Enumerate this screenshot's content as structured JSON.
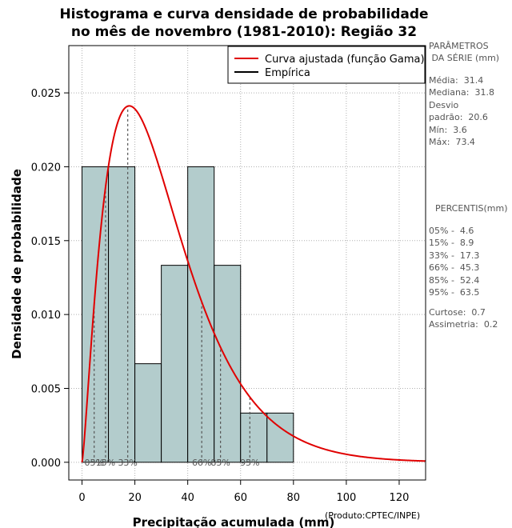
{
  "chart_data": {
    "type": "bar",
    "title": [
      "Histograma e curva densidade de probabilidade",
      "no mês de novembro (1981-2010): Região 32"
    ],
    "xlabel": "Precipitação acumulada (mm)",
    "ylabel": "Densidade de probabilidade",
    "xlim": [
      -5,
      130
    ],
    "ylim": [
      -0.0012,
      0.0282
    ],
    "xticks": [
      0,
      20,
      40,
      60,
      80,
      100,
      120
    ],
    "yticks": [
      0.0,
      0.005,
      0.01,
      0.015,
      0.02,
      0.025
    ],
    "ytick_labels": [
      "0.000",
      "0.005",
      "0.010",
      "0.015",
      "0.020",
      "0.025"
    ],
    "grid": true,
    "bins": [
      {
        "from": 0,
        "to": 10,
        "density": 0.02
      },
      {
        "from": 10,
        "to": 20,
        "density": 0.02
      },
      {
        "from": 20,
        "to": 30,
        "density": 0.00667
      },
      {
        "from": 30,
        "to": 40,
        "density": 0.01333
      },
      {
        "from": 40,
        "to": 50,
        "density": 0.02
      },
      {
        "from": 50,
        "to": 60,
        "density": 0.01333
      },
      {
        "from": 60,
        "to": 70,
        "density": 0.00333
      },
      {
        "from": 70,
        "to": 80,
        "density": 0.00333
      }
    ],
    "fitted_curve": {
      "name": "Curva ajustada (função Gama)",
      "distribution": "gamma",
      "mean": 31.4,
      "sd": 20.6,
      "color": "#e00000"
    },
    "legend": [
      {
        "label": "Curva ajustada (função Gama)",
        "color": "#e00000"
      },
      {
        "label": "Empírica",
        "color": "#000000"
      }
    ],
    "percentile_markers": [
      {
        "label": "05%",
        "value": 4.6
      },
      {
        "label": "15%",
        "value": 8.9
      },
      {
        "label": "33%",
        "value": 17.3
      },
      {
        "label": "66%",
        "value": 45.3
      },
      {
        "label": "85%",
        "value": 52.4
      },
      {
        "label": "95%",
        "value": 63.5
      }
    ],
    "colors": {
      "bar_fill": "#b3cccc",
      "bar_edge": "#000000",
      "grid": "#b0b0b0",
      "marker": "#555555",
      "tick_text": "#000000"
    }
  },
  "side_panel": {
    "params_header": "PARÂMETROS\n DA SÉRIE (mm)",
    "params_body": "Média:  31.4\nMediana:  31.8\nDesvio\npadrão:  20.6\nMín:  3.6\nMáx:  73.4",
    "percentis_header": "PERCENTIS(mm)",
    "percentis_body": "05% -  4.6\n15% -  8.9\n33% -  17.3\n66% -  45.3\n85% -  52.4\n95% -  63.5",
    "stats_body": "Curtose:  0.7\nAssimetria:  0.2"
  },
  "credit": "(Produto:CPTEC/INPE)"
}
